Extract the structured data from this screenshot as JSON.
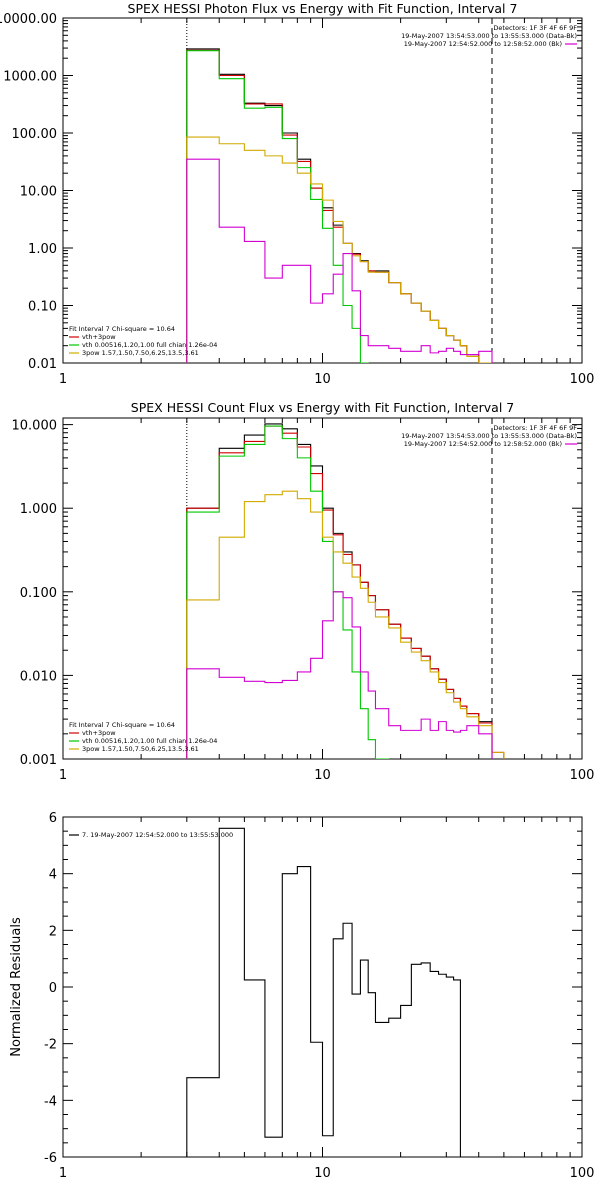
{
  "chart_data": [
    {
      "type": "line",
      "title": "SPEX HESSI Photon Flux vs Energy with Fit Function, Interval 7",
      "xlabel": "",
      "ylabel": "",
      "xscale": "log",
      "yscale": "log",
      "xlim": [
        1,
        100
      ],
      "ylim": [
        0.01,
        10000
      ],
      "xticks": [
        {
          "v": 1,
          "label": "1"
        },
        {
          "v": 10,
          "label": "10"
        },
        {
          "v": 100,
          "label": "100"
        }
      ],
      "yticks": [
        {
          "v": 10000,
          "label": "10000.00"
        },
        {
          "v": 1000,
          "label": "1000.00"
        },
        {
          "v": 100,
          "label": "100.00"
        },
        {
          "v": 10,
          "label": "10.00"
        },
        {
          "v": 1,
          "label": "1.00"
        },
        {
          "v": 0.1,
          "label": "0.10"
        },
        {
          "v": 0.01,
          "label": "0.01"
        }
      ],
      "vlines": [
        {
          "x": 3,
          "style": "dotted"
        },
        {
          "x": 45,
          "style": "dashed"
        }
      ],
      "legend_topright": [
        {
          "text": "Detectors: 1F 3F 4F 6F 9F",
          "color": null
        },
        {
          "text": "19-May-2007 13:54:53.000 to 13:55:53.000 (Data-Bk)",
          "color": null
        },
        {
          "text": "19-May-2007 12:54:52.000 to 12:58:52.000 (Bk)",
          "color": "#d200d2"
        }
      ],
      "legend_bottomleft": [
        {
          "text": "Fit Interval 7   Chi-square = 10.64",
          "color": null
        },
        {
          "text": "vth+3pow",
          "color": "#d20000"
        },
        {
          "text": "vth 0.00516,1.20,1.00  full chian 1.26e-04",
          "color": "#00c800"
        },
        {
          "text": "3pow 1.57,1.50,7.50,6.25,13.5,3.61",
          "color": "#d2aa00"
        }
      ],
      "edges": [
        3,
        4,
        5,
        6,
        7,
        8,
        9,
        10,
        11,
        12,
        13,
        14,
        15,
        16,
        18,
        20,
        22,
        24,
        26,
        28,
        30,
        32,
        34,
        36,
        40,
        45,
        50
      ],
      "series": [
        {
          "name": "Data-Bk",
          "color": "#000000",
          "values": [
            2900,
            1050,
            330,
            300,
            100,
            35,
            11,
            5,
            2.5,
            1.2,
            0.8,
            0.6,
            0.4,
            0.4,
            0.25,
            0.16,
            0.11,
            0.08,
            0.055,
            0.04,
            0.03,
            0.025,
            0.02,
            0.014
          ]
        },
        {
          "name": "vth+3pow",
          "color": "#d20000",
          "values": [
            2750,
            1000,
            320,
            320,
            92,
            32,
            11,
            4.5,
            2.3,
            1.2,
            0.78,
            0.58,
            0.4,
            0.38,
            0.25,
            0.16,
            0.11,
            0.08,
            0.055,
            0.04,
            0.03,
            0.025,
            0.02,
            0.014
          ]
        },
        {
          "name": "vth",
          "color": "#00c800",
          "values": [
            2700,
            880,
            270,
            280,
            80,
            25,
            7,
            2.2,
            0.5,
            0.1,
            0.04,
            0.01
          ]
        },
        {
          "name": "3pow",
          "color": "#d2aa00",
          "values": [
            85,
            65,
            50,
            40,
            30,
            20,
            13,
            6.8,
            2.9,
            1.2,
            0.73,
            0.58,
            0.38,
            0.38,
            0.25,
            0.16,
            0.11,
            0.08,
            0.055,
            0.04,
            0.03,
            0.025,
            0.02,
            0.013,
            0.01
          ]
        },
        {
          "name": "Bk",
          "color": "#d200d2",
          "values": [
            35,
            2.3,
            1.3,
            0.3,
            0.5,
            0.5,
            0.11,
            0.16,
            0.35,
            0.8,
            0.18,
            0.03,
            0.02,
            0.02,
            0.018,
            0.016,
            0.016,
            0.02,
            0.015,
            0.016,
            0.018,
            0.016,
            0.014,
            0.014,
            0.016
          ]
        }
      ]
    },
    {
      "type": "line",
      "title": "SPEX HESSI Count Flux vs Energy with Fit Function, Interval 7",
      "xlabel": "",
      "ylabel": "",
      "xscale": "log",
      "yscale": "log",
      "xlim": [
        1,
        100
      ],
      "ylim": [
        0.001,
        12
      ],
      "xticks": [
        {
          "v": 1,
          "label": "1"
        },
        {
          "v": 10,
          "label": "10"
        },
        {
          "v": 100,
          "label": "100"
        }
      ],
      "yticks": [
        {
          "v": 10,
          "label": "10.000"
        },
        {
          "v": 1,
          "label": "1.000"
        },
        {
          "v": 0.1,
          "label": "0.100"
        },
        {
          "v": 0.01,
          "label": "0.010"
        },
        {
          "v": 0.001,
          "label": "0.001"
        }
      ],
      "vlines": [
        {
          "x": 3,
          "style": "dotted"
        },
        {
          "x": 45,
          "style": "dashed"
        }
      ],
      "legend_topright": [
        {
          "text": "Detectors: 1F 3F 4F 6F 9F",
          "color": null
        },
        {
          "text": "19-May-2007 13:54:53.000 to 13:55:53.000 (Data-Bk)",
          "color": null
        },
        {
          "text": "19-May-2007 12:54:52.000 to 12:58:52.000 (Bk)",
          "color": "#d200d2"
        }
      ],
      "legend_bottomleft": [
        {
          "text": "Fit Interval 7   Chi-square = 10.64",
          "color": null
        },
        {
          "text": "vth+3pow",
          "color": "#d20000"
        },
        {
          "text": "vth 0.00516,1.20,1.00  full chian 1.26e-04",
          "color": "#00c800"
        },
        {
          "text": "3pow 1.57,1.50,7.50,6.25,13.5,3.61",
          "color": "#d2aa00"
        }
      ],
      "edges": [
        3,
        4,
        5,
        6,
        7,
        8,
        9,
        10,
        11,
        12,
        13,
        14,
        15,
        16,
        18,
        20,
        22,
        24,
        26,
        28,
        30,
        32,
        34,
        36,
        40,
        45,
        50
      ],
      "series": [
        {
          "name": "Data-Bk",
          "color": "#000000",
          "values": [
            1.0,
            5.2,
            7.5,
            10.2,
            8.9,
            5.8,
            3.2,
            1.0,
            0.5,
            0.3,
            0.21,
            0.13,
            0.09,
            0.061,
            0.041,
            0.028,
            0.021,
            0.017,
            0.012,
            0.009,
            0.0068,
            0.0053,
            0.0043,
            0.0035,
            0.0028
          ]
        },
        {
          "name": "vth+3pow",
          "color": "#d20000",
          "values": [
            1.0,
            4.6,
            6.3,
            9.6,
            7.9,
            5.4,
            2.6,
            0.95,
            0.48,
            0.28,
            0.21,
            0.13,
            0.09,
            0.061,
            0.041,
            0.028,
            0.021,
            0.017,
            0.012,
            0.009,
            0.0068,
            0.0053,
            0.0043,
            0.0035,
            0.0027,
            0.0012
          ]
        },
        {
          "name": "vth",
          "color": "#00c800",
          "values": [
            0.9,
            4.2,
            5.8,
            9.6,
            6.8,
            4.0,
            1.6,
            0.4,
            0.1,
            0.035,
            0.011,
            0.004,
            0.0017,
            0.001
          ]
        },
        {
          "name": "3pow",
          "color": "#d2aa00",
          "values": [
            0.08,
            0.45,
            1.2,
            1.45,
            1.6,
            1.3,
            0.9,
            0.45,
            0.3,
            0.22,
            0.15,
            0.11,
            0.075,
            0.05,
            0.037,
            0.025,
            0.019,
            0.015,
            0.011,
            0.0082,
            0.0062,
            0.0048,
            0.004,
            0.0032,
            0.0025,
            0.0012
          ]
        },
        {
          "name": "Bk",
          "color": "#d200d2",
          "values": [
            0.012,
            0.0095,
            0.0085,
            0.0082,
            0.0087,
            0.011,
            0.016,
            0.045,
            0.1,
            0.085,
            0.038,
            0.011,
            0.0065,
            0.004,
            0.0025,
            0.0022,
            0.0022,
            0.003,
            0.0022,
            0.0028,
            0.0022,
            0.0021,
            0.0022,
            0.0025,
            0.002
          ]
        }
      ]
    },
    {
      "type": "line",
      "title": "",
      "xlabel": "",
      "ylabel": "Normalized Residuals",
      "xscale": "log",
      "yscale": "linear",
      "xlim": [
        1,
        100
      ],
      "ylim": [
        -6,
        6
      ],
      "xticks": [
        {
          "v": 1,
          "label": "1"
        },
        {
          "v": 10,
          "label": "10"
        },
        {
          "v": 100,
          "label": "100"
        }
      ],
      "yticks": [
        {
          "v": 6,
          "label": "6"
        },
        {
          "v": 4,
          "label": "4"
        },
        {
          "v": 2,
          "label": "2"
        },
        {
          "v": 0,
          "label": "0"
        },
        {
          "v": -2,
          "label": "-2"
        },
        {
          "v": -4,
          "label": "-4"
        },
        {
          "v": -6,
          "label": "-6"
        }
      ],
      "legend_topleft": [
        {
          "text": "7. 19-May-2007 12:54:52.000 to 13:55:53.000",
          "color": "#000000"
        }
      ],
      "edges": [
        3,
        4,
        5,
        6,
        7,
        8,
        9,
        10,
        11,
        12,
        13,
        14,
        15,
        16,
        18,
        20,
        22,
        24,
        26,
        28,
        30,
        32,
        34,
        36,
        40,
        45
      ],
      "series": [
        {
          "name": "7. 19-May-2007 12:54:52.000 to 13:55:53.000",
          "color": "#000000",
          "values": [
            -3.2,
            5.6,
            0.25,
            -5.3,
            4.0,
            4.25,
            -1.95,
            -5.25,
            1.7,
            2.25,
            -0.25,
            0.95,
            -0.2,
            -1.25,
            -1.1,
            -0.65,
            0.8,
            0.85,
            0.55,
            0.45,
            0.35,
            0.25
          ]
        }
      ]
    }
  ]
}
